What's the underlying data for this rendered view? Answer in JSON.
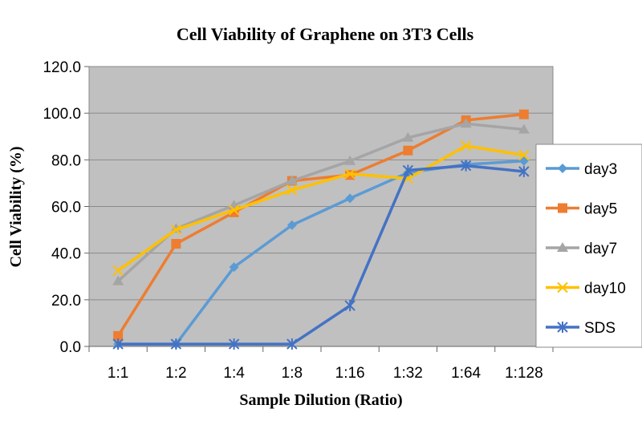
{
  "chart_data": {
    "type": "line",
    "title": "Cell Viability of Graphene on 3T3 Cells",
    "xlabel": "Sample Dilution (Ratio)",
    "ylabel": "Cell Viability (%)",
    "categories": [
      "1:1",
      "1:2",
      "1:4",
      "1:8",
      "1:16",
      "1:32",
      "1:64",
      "1:128"
    ],
    "ylim": [
      0,
      120
    ],
    "yticks": [
      "0.0",
      "20.0",
      "40.0",
      "60.0",
      "80.0",
      "100.0",
      "120.0"
    ],
    "grid": "horizontal",
    "legend_position": "right",
    "plot_background": "#c0c0c0",
    "series": [
      {
        "name": "day3",
        "color": "#5b9bd5",
        "marker": "diamond",
        "values": [
          1,
          1,
          34,
          52,
          63.5,
          74.5,
          78,
          79.5
        ]
      },
      {
        "name": "day5",
        "color": "#ed7d31",
        "marker": "square",
        "values": [
          4.5,
          44,
          57.5,
          71,
          73.5,
          84,
          97,
          99.5
        ]
      },
      {
        "name": "day7",
        "color": "#a5a5a5",
        "marker": "triangle",
        "values": [
          28,
          50.5,
          60.5,
          71,
          79.5,
          89.5,
          95.5,
          93
        ]
      },
      {
        "name": "day10",
        "color": "#ffc000",
        "marker": "x",
        "values": [
          32.5,
          50,
          58.5,
          67,
          74,
          72,
          86,
          82
        ]
      },
      {
        "name": "SDS",
        "color": "#4472c4",
        "marker": "star",
        "values": [
          1,
          1,
          1,
          1,
          17.5,
          75.5,
          77.5,
          75
        ]
      }
    ]
  }
}
